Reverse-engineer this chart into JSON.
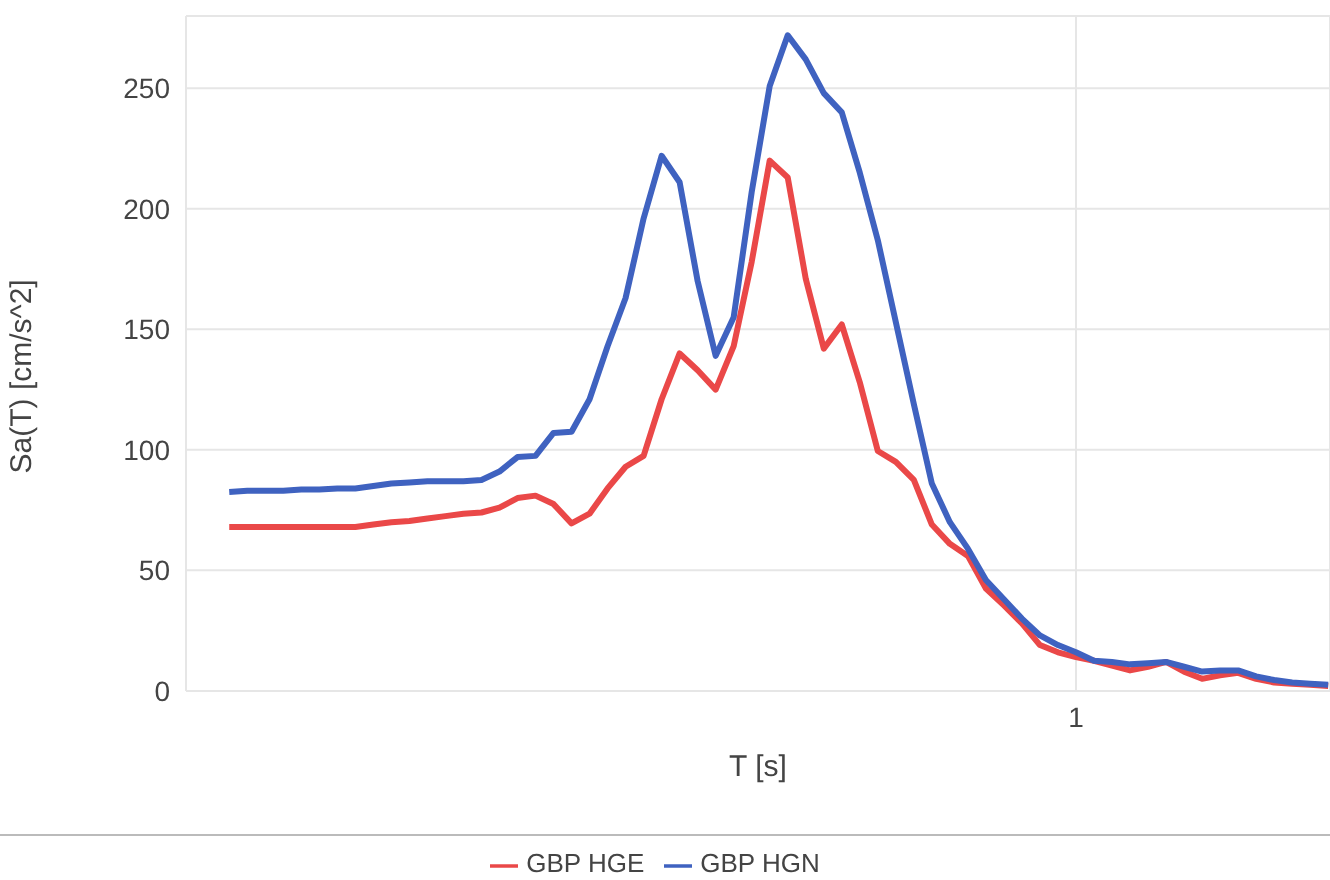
{
  "chart_data": {
    "type": "line",
    "xlabel": "T [s]",
    "ylabel": "Sa(T) [cm/s^2]",
    "categories": [
      null,
      null,
      null,
      null,
      null,
      null,
      null,
      null,
      null,
      null,
      null,
      null,
      null,
      null,
      null,
      null,
      null,
      null,
      null,
      null,
      null,
      null,
      null,
      null,
      null,
      null,
      null,
      null,
      null,
      null,
      null,
      null,
      null,
      null,
      null,
      null,
      null,
      null,
      null,
      null,
      null,
      null,
      null,
      null,
      null,
      null,
      null,
      "1",
      null,
      null,
      null,
      null,
      null,
      null,
      null,
      null,
      null,
      null,
      null,
      null,
      null,
      null
    ],
    "ylim": [
      0,
      280
    ],
    "yticks": [
      0,
      50,
      100,
      150,
      200,
      250
    ],
    "grid": true,
    "legend": "bottom",
    "marker": "none",
    "line_style": "solid",
    "series": [
      {
        "name": "GBP HGE",
        "color": "#ea4848",
        "values": [
          68,
          68,
          68,
          68,
          68,
          68,
          68,
          68,
          69,
          70,
          70.5,
          71.5,
          72.5,
          73.5,
          74,
          76,
          80,
          81,
          77.5,
          69.5,
          73.5,
          84,
          93,
          97.5,
          121,
          140,
          133,
          125,
          143,
          178,
          220,
          213,
          171,
          142,
          152,
          128,
          99.5,
          95,
          87.5,
          69,
          61,
          56,
          42.5,
          35.5,
          28,
          19,
          16,
          14,
          12.5,
          10.5,
          8.5,
          10,
          12,
          8,
          5,
          6.5,
          7.5,
          5,
          3.5,
          3,
          2.5,
          2
        ]
      },
      {
        "name": "GBP HGN",
        "color": "#3f62c0",
        "values": [
          82.5,
          83,
          83,
          83,
          83.5,
          83.5,
          84,
          84,
          85,
          86,
          86.5,
          87,
          87,
          87,
          87.5,
          91,
          97,
          97.5,
          107,
          107.5,
          121,
          143,
          163,
          196,
          222,
          211,
          170,
          139,
          155,
          207,
          251,
          272,
          262,
          248,
          240,
          215,
          187,
          153,
          119,
          86,
          70,
          59,
          46,
          38,
          30,
          23,
          19,
          16,
          12.5,
          12,
          11,
          11.5,
          12,
          10,
          8,
          8.5,
          8.5,
          6,
          4.5,
          3.5,
          3,
          2.5
        ]
      }
    ]
  }
}
